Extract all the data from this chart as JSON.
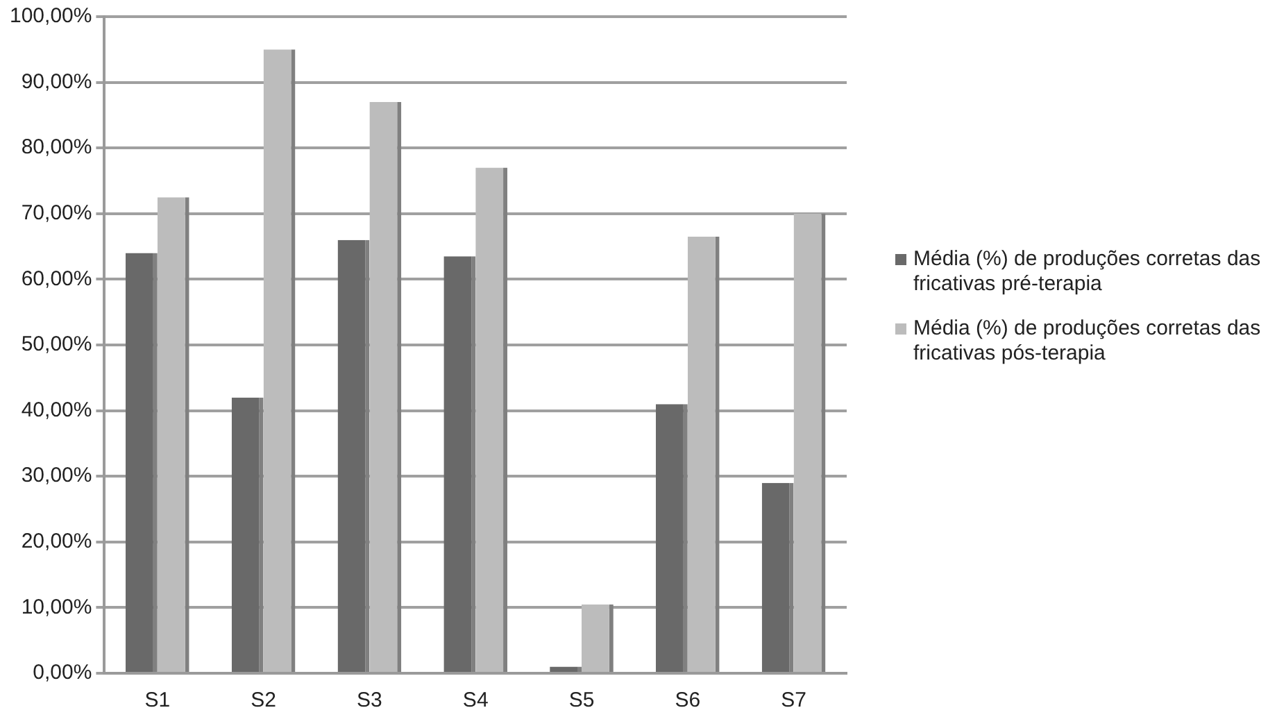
{
  "chart_data": {
    "type": "bar",
    "categories": [
      "S1",
      "S2",
      "S3",
      "S4",
      "S5",
      "S6",
      "S7"
    ],
    "series": [
      {
        "name": "Média (%) de produções corretas das fricativas pré-terapia",
        "color": "#696969",
        "values": [
          64,
          42,
          66,
          63.5,
          1,
          41,
          29
        ]
      },
      {
        "name": "Média (%) de produções corretas das fricativas pós-terapia",
        "color": "#bcbcbc",
        "values": [
          72.5,
          95,
          87,
          77,
          10.5,
          66.5,
          70
        ]
      }
    ],
    "ylim": [
      0,
      100
    ],
    "yticks": [
      {
        "value": 0,
        "label": "0,00%"
      },
      {
        "value": 10,
        "label": "10,00%"
      },
      {
        "value": 20,
        "label": "20,00%"
      },
      {
        "value": 30,
        "label": "30,00%"
      },
      {
        "value": 40,
        "label": "40,00%"
      },
      {
        "value": 50,
        "label": "50,00%"
      },
      {
        "value": 60,
        "label": "60,00%"
      },
      {
        "value": 70,
        "label": "70,00%"
      },
      {
        "value": 80,
        "label": "80,00%"
      },
      {
        "value": 90,
        "label": "90,00%"
      },
      {
        "value": 100,
        "label": "100,00%"
      }
    ],
    "grid": "y",
    "legend": "right"
  }
}
